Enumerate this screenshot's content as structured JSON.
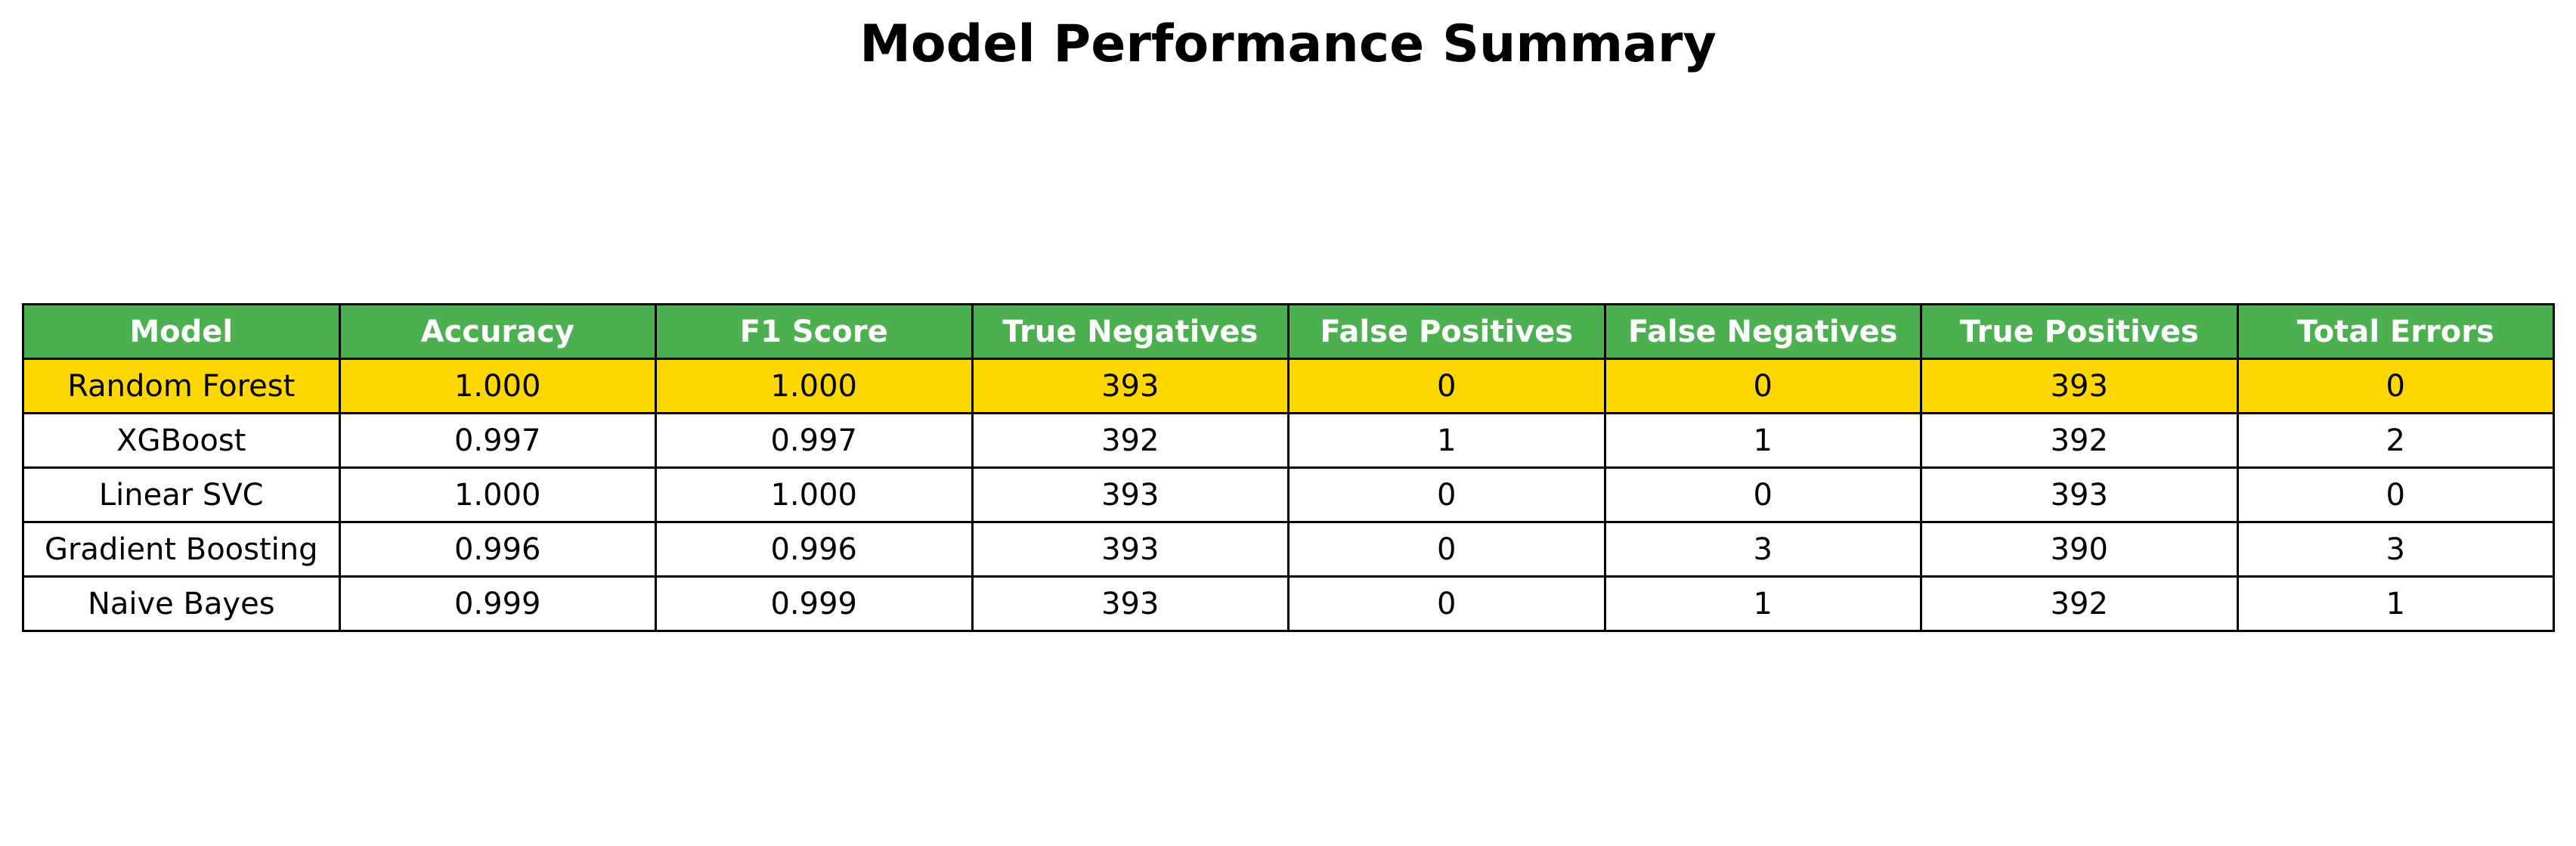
{
  "chart_data": {
    "type": "table",
    "title": "Model Performance Summary",
    "columns": [
      "Model",
      "Accuracy",
      "F1 Score",
      "True Negatives",
      "False Positives",
      "False Negatives",
      "True Positives",
      "Total Errors"
    ],
    "rows": [
      [
        "Random Forest",
        "1.000",
        "1.000",
        "393",
        "0",
        "0",
        "393",
        "0"
      ],
      [
        "XGBoost",
        "0.997",
        "0.997",
        "392",
        "1",
        "1",
        "392",
        "2"
      ],
      [
        "Linear SVC",
        "1.000",
        "1.000",
        "393",
        "0",
        "0",
        "393",
        "0"
      ],
      [
        "Gradient Boosting",
        "0.996",
        "0.996",
        "393",
        "0",
        "3",
        "390",
        "3"
      ],
      [
        "Naive Bayes",
        "0.999",
        "0.999",
        "393",
        "0",
        "1",
        "392",
        "1"
      ]
    ],
    "highlighted_row": 0
  },
  "colors": {
    "header_background": "#4CAF50",
    "header_text": "#FFFFFF",
    "highlight_background": "#FFD700",
    "row_background": "#FFFFFF",
    "border": "#000000"
  }
}
